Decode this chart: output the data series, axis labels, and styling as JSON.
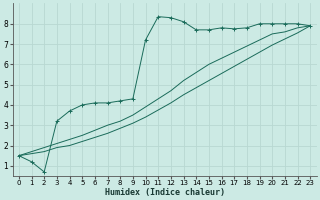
{
  "xlabel": "Humidex (Indice chaleur)",
  "bg_color": "#cceae4",
  "grid_color": "#b8d8d2",
  "line_color": "#1a6b5a",
  "xlim": [
    -0.5,
    23.5
  ],
  "ylim": [
    0.5,
    9.0
  ],
  "xticks": [
    0,
    1,
    2,
    3,
    4,
    5,
    6,
    7,
    8,
    9,
    10,
    11,
    12,
    13,
    14,
    15,
    16,
    17,
    18,
    19,
    20,
    21,
    22,
    23
  ],
  "yticks": [
    1,
    2,
    3,
    4,
    5,
    6,
    7,
    8
  ],
  "line1_x": [
    0,
    1,
    2,
    3,
    4,
    5,
    6,
    7,
    8,
    9,
    10,
    11,
    12,
    13,
    14,
    15,
    16,
    17,
    18,
    19,
    20,
    21,
    22,
    23
  ],
  "line1_y": [
    1.5,
    1.2,
    0.7,
    3.2,
    3.7,
    4.0,
    4.1,
    4.1,
    4.2,
    4.3,
    7.2,
    8.35,
    8.3,
    8.1,
    7.7,
    7.7,
    7.8,
    7.75,
    7.8,
    8.0,
    8.0,
    8.0,
    8.0,
    7.9
  ],
  "line2_x": [
    0,
    1,
    2,
    3,
    4,
    5,
    6,
    7,
    8,
    9,
    10,
    11,
    12,
    13,
    14,
    15,
    16,
    17,
    18,
    19,
    20,
    21,
    22,
    23
  ],
  "line2_y": [
    1.5,
    1.7,
    1.9,
    2.1,
    2.3,
    2.5,
    2.75,
    3.0,
    3.2,
    3.5,
    3.9,
    4.3,
    4.7,
    5.2,
    5.6,
    6.0,
    6.3,
    6.6,
    6.9,
    7.2,
    7.5,
    7.6,
    7.8,
    7.9
  ],
  "line3_x": [
    0,
    1,
    2,
    3,
    4,
    5,
    6,
    7,
    8,
    9,
    10,
    11,
    12,
    13,
    14,
    15,
    16,
    17,
    18,
    19,
    20,
    21,
    22,
    23
  ],
  "line3_y": [
    1.5,
    1.6,
    1.7,
    1.9,
    2.0,
    2.2,
    2.4,
    2.6,
    2.85,
    3.1,
    3.4,
    3.75,
    4.1,
    4.5,
    4.85,
    5.2,
    5.55,
    5.9,
    6.25,
    6.6,
    6.95,
    7.25,
    7.55,
    7.9
  ]
}
